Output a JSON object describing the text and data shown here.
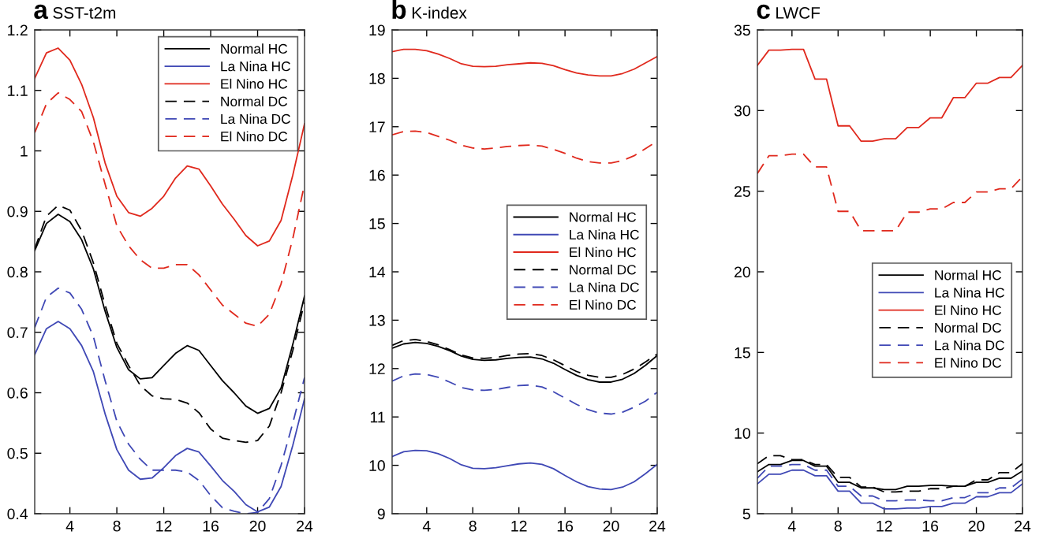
{
  "chart_data": [
    {
      "type": "line",
      "title": "a",
      "subtitle": "SST-t2m",
      "x": [
        1,
        2,
        3,
        4,
        5,
        6,
        7,
        8,
        9,
        10,
        11,
        12,
        13,
        14,
        15,
        16,
        17,
        18,
        19,
        20,
        21,
        22,
        23,
        24
      ],
      "xlim": [
        1,
        24
      ],
      "xticks": [
        4,
        8,
        12,
        16,
        20,
        24
      ],
      "ylim": [
        0.4,
        1.2
      ],
      "yticks": [
        0.4,
        0.5,
        0.6,
        0.7,
        0.8,
        0.9,
        1,
        1.1,
        1.2
      ],
      "grid": false,
      "legend": "top right",
      "marker": "none",
      "series": [
        {
          "name": "Normal HC",
          "color": "#000000",
          "line_style": "solid",
          "values": [
            0.835,
            0.88,
            0.895,
            0.883,
            0.853,
            0.805,
            0.735,
            0.675,
            0.638,
            0.623,
            0.625,
            0.645,
            0.665,
            0.678,
            0.67,
            0.645,
            0.62,
            0.6,
            0.578,
            0.566,
            0.574,
            0.608,
            0.68,
            0.76
          ]
        },
        {
          "name": "La Nina HC",
          "color": "#3f48b5",
          "line_style": "solid",
          "values": [
            0.663,
            0.706,
            0.718,
            0.706,
            0.678,
            0.635,
            0.565,
            0.506,
            0.472,
            0.457,
            0.459,
            0.476,
            0.496,
            0.508,
            0.502,
            0.479,
            0.455,
            0.437,
            0.415,
            0.403,
            0.411,
            0.445,
            0.513,
            0.59
          ]
        },
        {
          "name": "El Nino HC",
          "color": "#e0291d",
          "line_style": "solid",
          "values": [
            1.12,
            1.162,
            1.17,
            1.15,
            1.11,
            1.055,
            0.98,
            0.925,
            0.898,
            0.892,
            0.905,
            0.925,
            0.955,
            0.975,
            0.97,
            0.942,
            0.912,
            0.887,
            0.86,
            0.843,
            0.851,
            0.885,
            0.96,
            1.045
          ]
        },
        {
          "name": "Normal DC",
          "color": "#000000",
          "line_style": "dashed",
          "values": [
            0.838,
            0.892,
            0.91,
            0.902,
            0.868,
            0.815,
            0.745,
            0.682,
            0.645,
            0.612,
            0.595,
            0.59,
            0.589,
            0.583,
            0.567,
            0.54,
            0.525,
            0.521,
            0.518,
            0.521,
            0.545,
            0.6,
            0.67,
            0.75
          ]
        },
        {
          "name": "La Nina DC",
          "color": "#3f48b5",
          "line_style": "dashed",
          "values": [
            0.708,
            0.758,
            0.773,
            0.765,
            0.738,
            0.693,
            0.62,
            0.553,
            0.515,
            0.49,
            0.472,
            0.472,
            0.472,
            0.469,
            0.455,
            0.43,
            0.41,
            0.404,
            0.4,
            0.402,
            0.425,
            0.48,
            0.55,
            0.625
          ]
        },
        {
          "name": "El Nino DC",
          "color": "#e0291d",
          "line_style": "dashed",
          "values": [
            1.03,
            1.078,
            1.096,
            1.085,
            1.065,
            1.015,
            0.945,
            0.876,
            0.843,
            0.82,
            0.806,
            0.806,
            0.812,
            0.812,
            0.795,
            0.77,
            0.745,
            0.73,
            0.715,
            0.71,
            0.73,
            0.78,
            0.855,
            0.945
          ]
        }
      ]
    },
    {
      "type": "line",
      "title": "b",
      "subtitle": "K-index",
      "x": [
        1,
        2,
        3,
        4,
        5,
        6,
        7,
        8,
        9,
        10,
        11,
        12,
        13,
        14,
        15,
        16,
        17,
        18,
        19,
        20,
        21,
        22,
        23,
        24
      ],
      "xlim": [
        1,
        24
      ],
      "xticks": [
        4,
        8,
        12,
        16,
        20,
        24
      ],
      "ylim": [
        9,
        19
      ],
      "yticks": [
        9,
        10,
        11,
        12,
        13,
        14,
        15,
        16,
        17,
        18,
        19
      ],
      "grid": false,
      "legend": "right",
      "marker": "none",
      "series": [
        {
          "name": "Normal HC",
          "color": "#000000",
          "line_style": "solid",
          "values": [
            12.42,
            12.51,
            12.54,
            12.52,
            12.46,
            12.37,
            12.26,
            12.19,
            12.17,
            12.18,
            12.21,
            12.23,
            12.24,
            12.2,
            12.11,
            11.98,
            11.86,
            11.77,
            11.72,
            11.72,
            11.78,
            11.9,
            12.07,
            12.27
          ]
        },
        {
          "name": "La Nina HC",
          "color": "#3f48b5",
          "line_style": "solid",
          "values": [
            10.18,
            10.28,
            10.31,
            10.3,
            10.24,
            10.14,
            10.01,
            9.94,
            9.93,
            9.95,
            9.99,
            10.03,
            10.05,
            10.02,
            9.93,
            9.79,
            9.66,
            9.56,
            9.51,
            9.5,
            9.55,
            9.66,
            9.83,
            10.02
          ]
        },
        {
          "name": "El Nino HC",
          "color": "#e0291d",
          "line_style": "solid",
          "values": [
            18.55,
            18.6,
            18.6,
            18.57,
            18.5,
            18.41,
            18.3,
            18.25,
            18.24,
            18.25,
            18.28,
            18.3,
            18.32,
            18.31,
            18.26,
            18.18,
            18.11,
            18.07,
            18.05,
            18.05,
            18.1,
            18.19,
            18.32,
            18.45
          ]
        },
        {
          "name": "Normal DC",
          "color": "#000000",
          "line_style": "dashed",
          "values": [
            12.48,
            12.58,
            12.6,
            12.56,
            12.49,
            12.39,
            12.28,
            12.22,
            12.21,
            12.23,
            12.27,
            12.3,
            12.31,
            12.27,
            12.18,
            12.06,
            11.94,
            11.86,
            11.82,
            11.82,
            11.88,
            11.99,
            12.14,
            12.3
          ]
        },
        {
          "name": "La Nina DC",
          "color": "#3f48b5",
          "line_style": "dashed",
          "values": [
            11.74,
            11.85,
            11.89,
            11.88,
            11.82,
            11.72,
            11.61,
            11.56,
            11.55,
            11.57,
            11.61,
            11.65,
            11.66,
            11.62,
            11.52,
            11.39,
            11.26,
            11.15,
            11.08,
            11.06,
            11.1,
            11.2,
            11.33,
            11.51
          ]
        },
        {
          "name": "El Nino DC",
          "color": "#e0291d",
          "line_style": "dashed",
          "values": [
            16.83,
            16.9,
            16.91,
            16.88,
            16.8,
            16.72,
            16.62,
            16.56,
            16.54,
            16.56,
            16.59,
            16.61,
            16.62,
            16.6,
            16.53,
            16.45,
            16.35,
            16.28,
            16.25,
            16.25,
            16.3,
            16.4,
            16.55,
            16.7
          ]
        }
      ]
    },
    {
      "type": "line",
      "title": "c",
      "subtitle": "LWCF",
      "x": [
        1,
        2,
        3,
        4,
        5,
        6,
        7,
        8,
        9,
        10,
        11,
        12,
        13,
        14,
        15,
        16,
        17,
        18,
        19,
        20,
        21,
        22,
        23,
        24
      ],
      "xlim": [
        1,
        24
      ],
      "xticks": [
        4,
        8,
        12,
        16,
        20,
        24
      ],
      "ylim": [
        5,
        35
      ],
      "yticks": [
        5,
        10,
        15,
        20,
        25,
        30,
        35
      ],
      "grid": false,
      "legend": "right",
      "marker": "none",
      "series": [
        {
          "name": "Normal HC",
          "color": "#000000",
          "line_style": "solid",
          "values": [
            7.6,
            8.05,
            8.05,
            8.3,
            8.3,
            7.95,
            7.95,
            6.95,
            6.95,
            6.6,
            6.6,
            6.5,
            6.5,
            6.7,
            6.7,
            6.75,
            6.75,
            6.7,
            6.7,
            6.95,
            6.95,
            7.2,
            7.2,
            7.65
          ]
        },
        {
          "name": "La Nina HC",
          "color": "#3f48b5",
          "line_style": "solid",
          "values": [
            6.85,
            7.45,
            7.45,
            7.7,
            7.7,
            7.35,
            7.35,
            6.4,
            6.4,
            5.65,
            5.65,
            5.3,
            5.3,
            5.35,
            5.35,
            5.45,
            5.45,
            5.65,
            5.65,
            6.05,
            6.05,
            6.3,
            6.3,
            6.85
          ]
        },
        {
          "name": "El Nino HC",
          "color": "#e0291d",
          "line_style": "solid",
          "values": [
            32.8,
            33.75,
            33.75,
            33.8,
            33.8,
            31.95,
            31.95,
            29.05,
            29.05,
            28.1,
            28.1,
            28.25,
            28.25,
            28.95,
            28.95,
            29.55,
            29.55,
            30.8,
            30.8,
            31.7,
            31.7,
            32.05,
            32.05,
            32.8
          ]
        },
        {
          "name": "Normal DC",
          "color": "#000000",
          "line_style": "dashed",
          "values": [
            8.1,
            8.6,
            8.6,
            8.35,
            8.35,
            8.05,
            8.05,
            7.25,
            7.25,
            6.65,
            6.65,
            6.35,
            6.35,
            6.4,
            6.4,
            6.55,
            6.55,
            6.7,
            6.7,
            7.1,
            7.1,
            7.55,
            7.55,
            8.1
          ]
        },
        {
          "name": "La Nina DC",
          "color": "#3f48b5",
          "line_style": "dashed",
          "values": [
            7.2,
            7.95,
            7.95,
            8.05,
            8.05,
            7.7,
            7.7,
            6.7,
            6.7,
            6.1,
            6.1,
            5.8,
            5.8,
            5.85,
            5.85,
            5.8,
            5.8,
            6.0,
            6.0,
            6.3,
            6.3,
            6.6,
            6.6,
            7.15
          ]
        },
        {
          "name": "El Nino DC",
          "color": "#e0291d",
          "line_style": "dashed",
          "values": [
            26.1,
            27.2,
            27.2,
            27.3,
            27.3,
            26.5,
            26.5,
            23.75,
            23.75,
            22.55,
            22.55,
            22.55,
            22.55,
            23.7,
            23.7,
            23.9,
            23.9,
            24.3,
            24.3,
            24.95,
            24.95,
            25.15,
            25.15,
            25.9
          ]
        }
      ]
    }
  ]
}
